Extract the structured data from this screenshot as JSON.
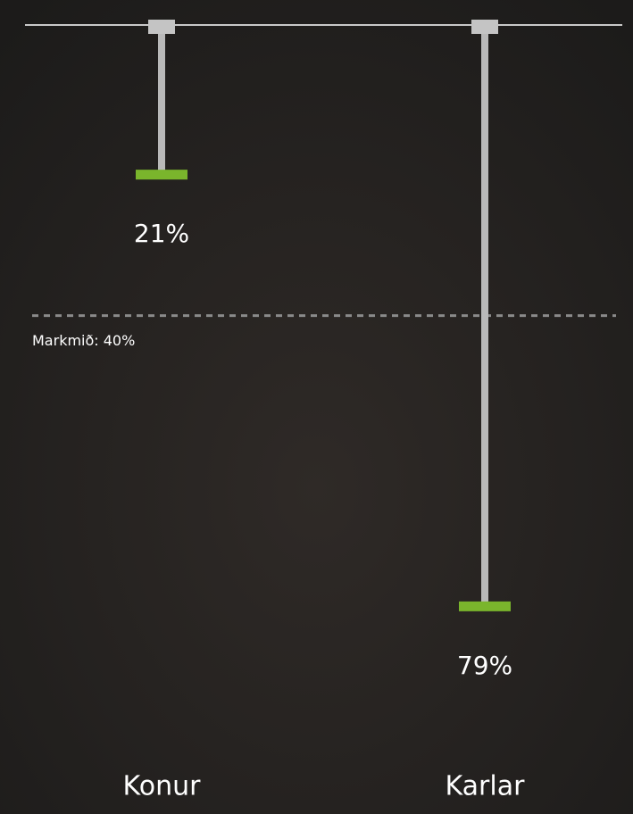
{
  "chart_data": {
    "type": "lollipop",
    "categories": [
      "Konur",
      "Karlar"
    ],
    "values": [
      21,
      79
    ],
    "value_labels": [
      "21%",
      "79%"
    ],
    "ylim": [
      0,
      100
    ],
    "target": {
      "value": 40,
      "label": "Markmið: 40%"
    },
    "stem_color": "#b9b9b9",
    "color": "#7ab52c"
  }
}
